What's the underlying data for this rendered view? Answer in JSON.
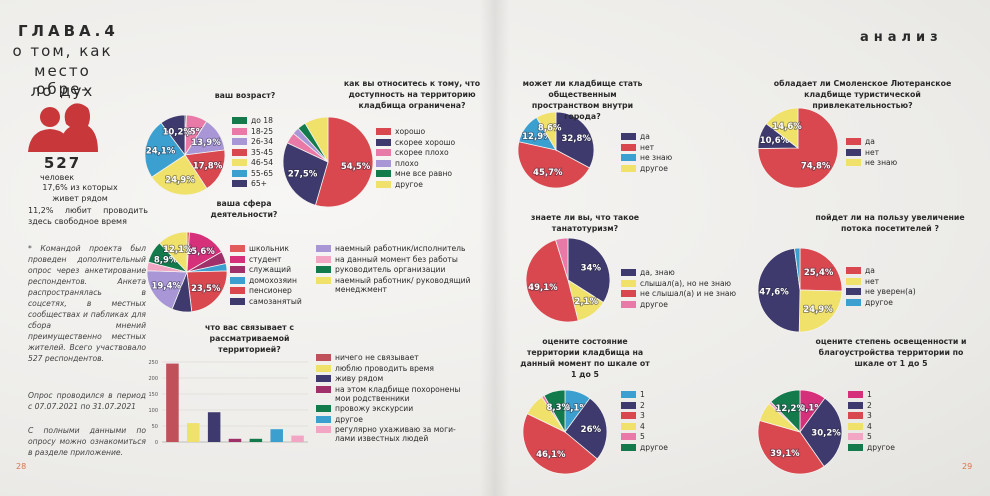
{
  "header": {
    "chapter": "ГЛАВА.4",
    "title_lines": [
      "о том, как",
      "место обре-",
      "ло дух"
    ],
    "section": "анализ"
  },
  "stats": {
    "count": "527",
    "unit": "человек",
    "near": "17,6% из которых живет рядом",
    "leisure": "11,2% любит проводить здесь свободное время"
  },
  "notes": [
    "* Командой проекта был проведен дополнительный опрос через анкетирование респондентов. Анкета распространялась в соцсетях, в местных сообществах и пабликах для сбора мнений преимущественно местных жителей. Всего участвовало 527 респондентов.",
    "Опрос проводился в период с 07.07.2021 по 31.07.2021",
    "С полными данными по опросу можно ознакомиться в разделе приложение."
  ],
  "pages": [
    "28",
    "29"
  ],
  "chart_data": [
    {
      "type": "pie",
      "title": "ваш возраст?",
      "categories": [
        "до 18",
        "18-25",
        "26-34",
        "35-45",
        "46-54",
        "55-65",
        "65+"
      ],
      "values": [
        0.6,
        8.5,
        13.9,
        17.8,
        24.9,
        24.1,
        10.2
      ],
      "value_labels": [
        null,
        "8,5%",
        "13,9%",
        "17,8%",
        "24,9%",
        "24,1%",
        "10,2%"
      ],
      "colors": [
        "#137a4c",
        "#e97aa8",
        "#a896d6",
        "#d9474f",
        "#f0e16a",
        "#3ba0cf",
        "#3e3a6e"
      ]
    },
    {
      "type": "pie",
      "title": "как вы относитесь к тому, что доступность на территорию кладбища ограничена?",
      "categories": [
        "хорошо",
        "скорее хорошо",
        "скорее плохо",
        "плохо",
        "мне все равно",
        "другое"
      ],
      "values": [
        54.5,
        27.5,
        4,
        2.5,
        3,
        8.5
      ],
      "value_labels": [
        "54,5%",
        "27,5%",
        null,
        null,
        null,
        null
      ],
      "colors": [
        "#d9474f",
        "#3e3a6e",
        "#e97aa8",
        "#a896d6",
        "#137a4c",
        "#f0e16a"
      ]
    },
    {
      "type": "pie",
      "title": "ваша сфера деятельности?",
      "categories": [
        "школьник",
        "студент",
        "служащий",
        "домохозяин",
        "пенсионер",
        "самозанятый",
        "наемный работник/исполнитель",
        "на данный момент без работы",
        "руководитель организации",
        "наемный работник/ руководящий менеджмент"
      ],
      "values": [
        1,
        15.6,
        5,
        3,
        23.5,
        8,
        19.4,
        3.5,
        8.9,
        12.1
      ],
      "value_labels": [
        null,
        "15,6%",
        null,
        null,
        "23,5%",
        null,
        "19,4%",
        null,
        "8,9%",
        "12,1%"
      ],
      "colors": [
        "#e25a5a",
        "#d6307a",
        "#a0306a",
        "#3ba0cf",
        "#d9474f",
        "#3e3a6e",
        "#a896d6",
        "#f3a6c4",
        "#137a4c",
        "#f0e16a"
      ]
    },
    {
      "type": "bar",
      "title": "что вас связывает с рассматриваемой территорией?",
      "categories": [
        "ничего не связывает",
        "люблю проводить время",
        "живу рядом",
        "на этом кладбище похоронены мои родственники",
        "провожу экскурсии",
        "другое",
        "регулярно ухаживаю за моги-лами известных людей"
      ],
      "values": [
        245,
        59,
        93,
        10,
        10,
        40,
        20
      ],
      "colors": [
        "#c0505a",
        "#f0e16a",
        "#3e3a6e",
        "#a0306a",
        "#137a4c",
        "#3ba0cf",
        "#f3a6c4"
      ],
      "ylim": [
        0,
        250
      ],
      "yticks": [
        0,
        50,
        100,
        150,
        200,
        250
      ]
    },
    {
      "type": "pie",
      "title": "может ли кладбище стать общественным пространством внутри города?",
      "categories": [
        "да",
        "нет",
        "не знаю",
        "другое"
      ],
      "values": [
        32.8,
        45.7,
        12.9,
        8.6
      ],
      "value_labels": [
        "32,8%",
        "45,7%",
        "12,9%",
        "8,6%"
      ],
      "colors": [
        "#3e3a6e",
        "#d9474f",
        "#3ba0cf",
        "#f0e16a"
      ]
    },
    {
      "type": "pie",
      "title": "обладает ли Смоленское Лютеранское кладбище туристической привлекательностью?",
      "categories": [
        "да",
        "нет",
        "не знаю"
      ],
      "values": [
        74.8,
        10.6,
        14.6
      ],
      "value_labels": [
        "74,8%",
        "10,6%",
        "14,6%"
      ],
      "colors": [
        "#d9474f",
        "#3e3a6e",
        "#f0e16a"
      ]
    },
    {
      "type": "pie",
      "title": "знаете ли вы, что такое танатотуризм?",
      "categories": [
        "да, знаю",
        "слышал(а), но не знаю",
        "не слышал(а) и не знаю",
        "другое"
      ],
      "values": [
        34,
        12.1,
        49.1,
        4.8
      ],
      "value_labels": [
        "34%",
        "12,1%",
        "49,1%",
        null
      ],
      "colors": [
        "#3e3a6e",
        "#f0e16a",
        "#d9474f",
        "#e97aa8"
      ]
    },
    {
      "type": "pie",
      "title": "пойдет ли на пользу увеличение потока посетителей ?",
      "categories": [
        "да",
        "нет",
        "не уверен(а)",
        "другое"
      ],
      "values": [
        25.4,
        24.9,
        47.6,
        2.1
      ],
      "value_labels": [
        "25,4%",
        "24,9%",
        "47,6%",
        null
      ],
      "colors": [
        "#d9474f",
        "#f0e16a",
        "#3e3a6e",
        "#3ba0cf"
      ]
    },
    {
      "type": "pie",
      "title": "оцените состояние территории кладбища на данный момент по шкале от 1 до 5",
      "categories": [
        "1",
        "2",
        "3",
        "4",
        "5",
        "другое"
      ],
      "values": [
        10.1,
        26,
        46.1,
        8.5,
        1,
        8.3
      ],
      "value_labels": [
        "10,1%",
        "26%",
        "46,1%",
        null,
        null,
        "8,3%"
      ],
      "colors": [
        "#3ba0cf",
        "#3e3a6e",
        "#d9474f",
        "#f0e16a",
        "#e97aa8",
        "#137a4c"
      ]
    },
    {
      "type": "pie",
      "title": "оцените степень освещенности и благоустройства территории по шкале от 1 до 5",
      "categories": [
        "1",
        "2",
        "3",
        "4",
        "5",
        "другое"
      ],
      "values": [
        10.1,
        30.2,
        39.1,
        7.4,
        1,
        12.2
      ],
      "value_labels": [
        "10,1%",
        "30,2%",
        "39,1%",
        null,
        null,
        "12,2%"
      ],
      "colors": [
        "#d6307a",
        "#3e3a6e",
        "#d9474f",
        "#f0e16a",
        "#f3a6c4",
        "#137a4c"
      ]
    }
  ]
}
